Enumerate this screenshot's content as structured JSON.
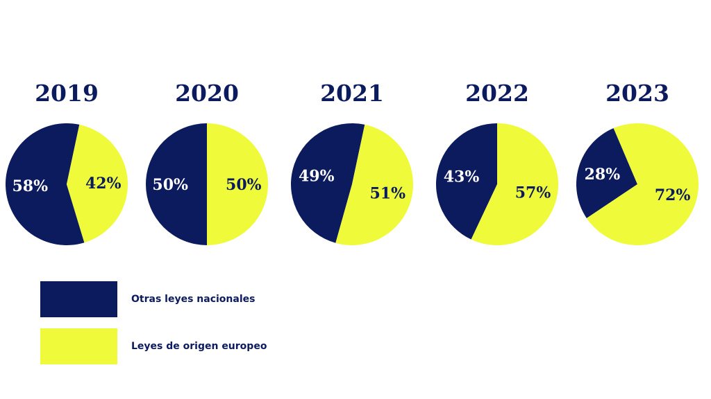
{
  "colors": {
    "navy": "#0c1a5e",
    "yellow": "#eefa3a",
    "label_text": "#ffffff",
    "title_text": "#0c1a5e"
  },
  "chart_data": {
    "type": "pie",
    "pies": [
      {
        "year": "2019",
        "slices": [
          {
            "series": "Otras leyes nacionales",
            "value": 58,
            "label": "58%"
          },
          {
            "series": "Leyes de origen europeo",
            "value": 42,
            "label": "42%"
          }
        ]
      },
      {
        "year": "2020",
        "slices": [
          {
            "series": "Otras leyes nacionales",
            "value": 50,
            "label": "50%"
          },
          {
            "series": "Leyes de origen europeo",
            "value": 50,
            "label": "50%"
          }
        ]
      },
      {
        "year": "2021",
        "slices": [
          {
            "series": "Otras leyes nacionales",
            "value": 49,
            "label": "49%"
          },
          {
            "series": "Leyes de origen europeo",
            "value": 51,
            "label": "51%"
          }
        ]
      },
      {
        "year": "2022",
        "slices": [
          {
            "series": "Otras leyes nacionales",
            "value": 43,
            "label": "43%"
          },
          {
            "series": "Leyes de origen europeo",
            "value": 57,
            "label": "57%"
          }
        ]
      },
      {
        "year": "2023",
        "slices": [
          {
            "series": "Otras leyes nacionales",
            "value": 28,
            "label": "28%"
          },
          {
            "series": "Leyes de origen europeo",
            "value": 72,
            "label": "72%"
          }
        ]
      }
    ],
    "legend": [
      {
        "label": "Otras leyes nacionales",
        "color": "#0c1a5e"
      },
      {
        "label": "Leyes de origen europeo",
        "color": "#eefa3a"
      }
    ],
    "legend_position": "bottom-left"
  }
}
